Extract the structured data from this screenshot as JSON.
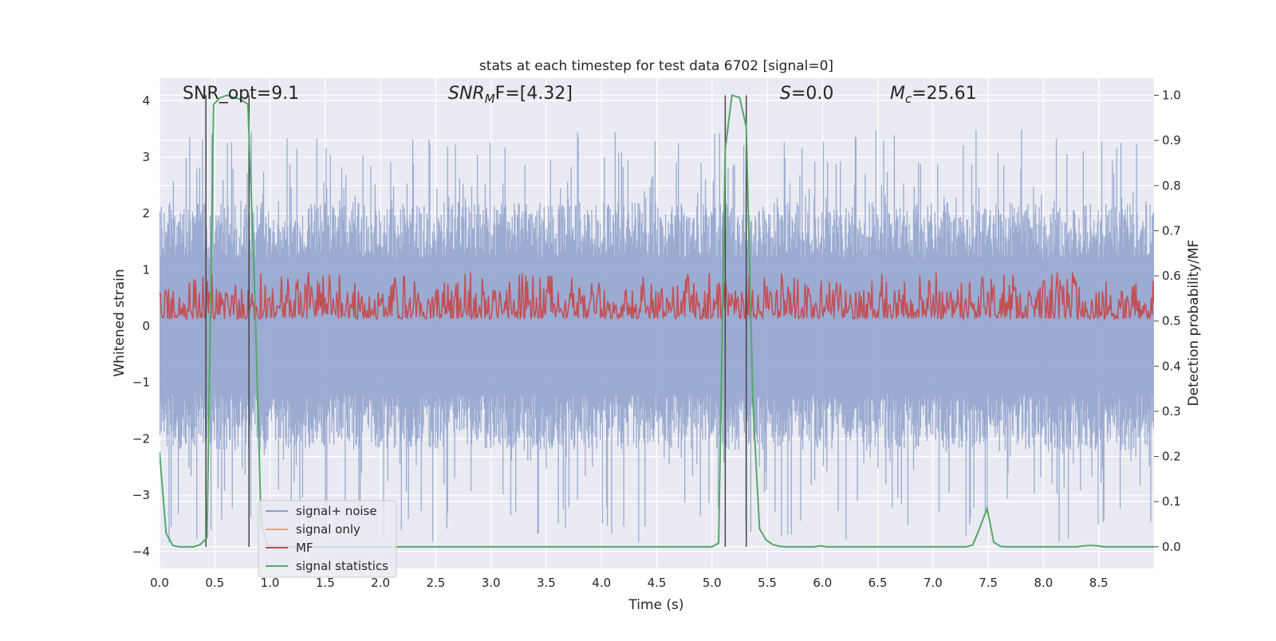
{
  "chart_data": {
    "type": "line",
    "title": "stats at each timestep for test data 6702 [signal=0]",
    "xlabel": "Time (s)",
    "ylabel_left": "Whitened strain",
    "ylabel_right": "Detection probability/MF",
    "xlim": [
      0,
      9
    ],
    "ylim_left": [
      -4.3,
      4.4
    ],
    "ylim_right": [
      -0.048,
      1.038
    ],
    "x_ticks": [
      "0.0",
      "0.5",
      "1.0",
      "1.5",
      "2.0",
      "2.5",
      "3.0",
      "3.5",
      "4.0",
      "4.5",
      "5.0",
      "5.5",
      "6.0",
      "6.5",
      "7.0",
      "7.5",
      "8.0",
      "8.5"
    ],
    "y_ticks_left": [
      "-4",
      "-3",
      "-2",
      "-1",
      "0",
      "1",
      "2",
      "3",
      "4"
    ],
    "y_ticks_right": [
      "0.0",
      "0.1",
      "0.2",
      "0.3",
      "0.4",
      "0.5",
      "0.6",
      "0.7",
      "0.8",
      "0.9",
      "1.0"
    ],
    "grid": true,
    "legend_position": "lower-left",
    "annotations": {
      "snr_opt": "SNR_opt=9.1",
      "snr_mf_sym": "SNR",
      "snr_mf_sub": "M",
      "snr_mf_rest": "F=[4.32]",
      "s_sym": "S",
      "s_rest": "=0.0",
      "mc_sym": "M",
      "mc_sub": "c",
      "mc_rest": "=25.61"
    },
    "vertical_lines_x": [
      0.42,
      0.81,
      5.12,
      5.31
    ],
    "series": [
      {
        "name": "signal+ noise",
        "axis": "left",
        "color": "#8da0cb",
        "envelope": {
          "typical_max": 2.0,
          "typical_min": -2.0,
          "peak_max": 3.5,
          "peak_min": -3.85
        }
      },
      {
        "name": "signal only",
        "axis": "left",
        "color": "#e8a07c",
        "values": []
      },
      {
        "name": "MF",
        "axis": "right",
        "color": "#c44e52",
        "range": [
          0.5,
          0.65
        ]
      },
      {
        "name": "signal statistics",
        "axis": "right",
        "color": "#55a868",
        "x": [
          0.0,
          0.06,
          0.12,
          0.18,
          0.25,
          0.31,
          0.37,
          0.43,
          0.49,
          0.55,
          0.61,
          0.68,
          0.74,
          0.8,
          0.86,
          0.92,
          0.98,
          1.04,
          1.1,
          5.0,
          5.06,
          5.12,
          5.18,
          5.25,
          5.31,
          5.37,
          5.43,
          5.49,
          5.55,
          5.61,
          5.68,
          5.74,
          5.8,
          5.86,
          5.92,
          5.98,
          6.04,
          7.3,
          7.36,
          7.42,
          7.49,
          7.55,
          7.61,
          7.67,
          8.3,
          8.36,
          8.43,
          8.49,
          8.55,
          9.0
        ],
        "values": [
          0.21,
          0.03,
          0.003,
          0.0,
          0.0,
          0.0,
          0.005,
          0.02,
          0.98,
          0.995,
          1.0,
          0.995,
          0.99,
          0.98,
          0.58,
          0.05,
          0.003,
          0.0,
          0.0,
          0.0,
          0.008,
          0.88,
          1.0,
          0.995,
          0.93,
          0.32,
          0.04,
          0.015,
          0.005,
          0.001,
          0.0,
          0.0,
          0.0,
          0.0,
          0.0,
          0.002,
          0.0,
          0.0,
          0.004,
          0.04,
          0.085,
          0.01,
          0.001,
          0.0,
          0.0,
          0.002,
          0.003,
          0.002,
          0.0,
          0.0
        ]
      }
    ]
  }
}
